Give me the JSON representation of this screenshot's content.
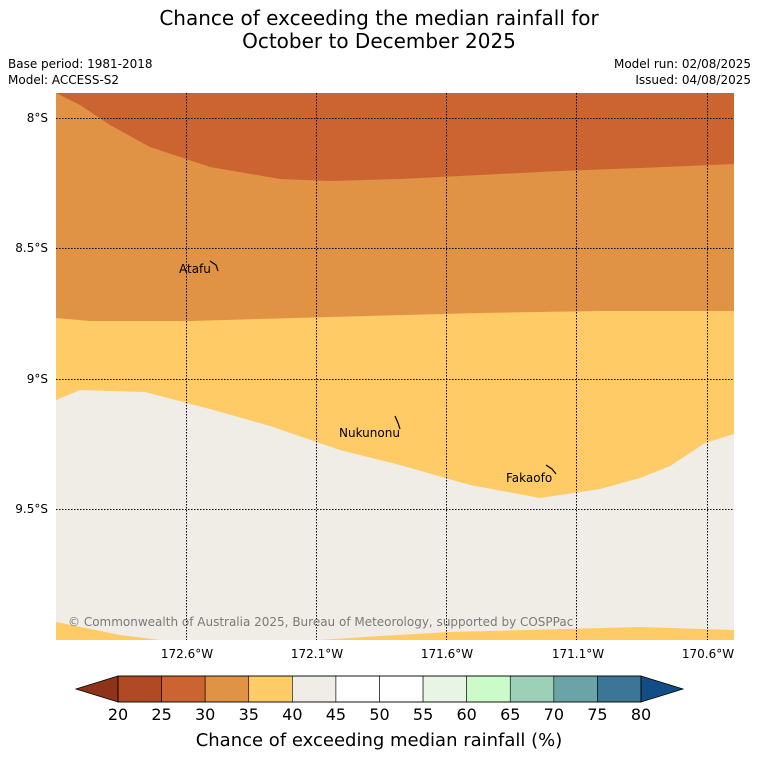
{
  "title": {
    "line1": "Chance of exceeding the median rainfall for",
    "line2": "October to December 2025"
  },
  "info": {
    "base_period": "Base period: 1981-2018",
    "model": "Model: ACCESS-S2",
    "model_run": "Model run: 02/08/2025",
    "issued": "Issued: 04/08/2025"
  },
  "map": {
    "lat_labels": [
      "8°S",
      "8.5°S",
      "9°S",
      "9.5°S"
    ],
    "lon_labels": [
      "172.6°W",
      "172.1°W",
      "171.6°W",
      "171.1°W",
      "170.6°W"
    ],
    "places": [
      "Atafu",
      "Nukunonu",
      "Fakaofo"
    ],
    "copyright": "© Commonwealth of Australia 2025, Bureau of Meteorology, supported by COSPPac",
    "band_colors": {
      "25-30": "#cb6431",
      "30-35": "#e09344",
      "35-40": "#fecb66",
      "40-60": "#f0ece6"
    }
  },
  "colorbar": {
    "ticks": [
      "20",
      "25",
      "30",
      "35",
      "40",
      "45",
      "50",
      "55",
      "60",
      "65",
      "70",
      "75",
      "80"
    ],
    "colors": [
      "#b04a24",
      "#cb6431",
      "#e09344",
      "#fecb66",
      "#f0ece6",
      "#ffffff",
      "#ffffff",
      "#e8f5e4",
      "#cbfbc9",
      "#9dd0b8",
      "#6aa4a7",
      "#3c7696"
    ],
    "under_color": "#8e3219",
    "over_color": "#124e85",
    "title": "Chance of exceeding median rainfall (%)"
  }
}
